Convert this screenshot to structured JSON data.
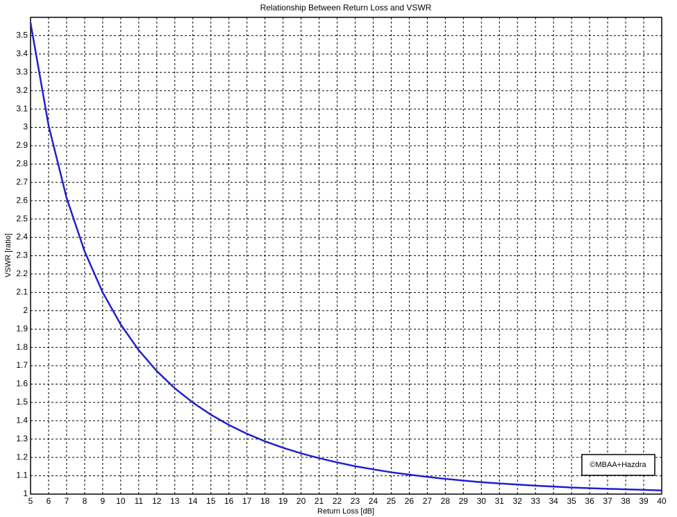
{
  "chart_data": {
    "type": "line",
    "title": "Relationship Between Return Loss and VSWR",
    "x_label": "Return Loss [dB]",
    "y_label": "VSWR [ratio]",
    "annotation": "©MBAA+Hazdra",
    "x": [
      5,
      6,
      7,
      8,
      9,
      10,
      11,
      12,
      13,
      14,
      15,
      16,
      17,
      18,
      19,
      20,
      21,
      22,
      23,
      24,
      25,
      26,
      27,
      28,
      29,
      30,
      31,
      32,
      33,
      34,
      35,
      36,
      37,
      38,
      39,
      40
    ],
    "series": [
      {
        "name": "VSWR",
        "color": "#1f1fd0",
        "values": [
          3.57,
          3.01,
          2.615,
          2.323,
          2.1,
          1.925,
          1.785,
          1.671,
          1.577,
          1.499,
          1.433,
          1.377,
          1.329,
          1.288,
          1.253,
          1.222,
          1.196,
          1.173,
          1.152,
          1.135,
          1.119,
          1.106,
          1.094,
          1.083,
          1.074,
          1.065,
          1.058,
          1.052,
          1.046,
          1.041,
          1.036,
          1.032,
          1.029,
          1.026,
          1.023,
          1.02
        ]
      }
    ],
    "xlim": [
      5,
      40
    ],
    "xticks": [
      5,
      6,
      7,
      8,
      9,
      10,
      11,
      12,
      13,
      14,
      15,
      16,
      17,
      18,
      19,
      20,
      21,
      22,
      23,
      24,
      25,
      26,
      27,
      28,
      29,
      30,
      31,
      32,
      33,
      34,
      35,
      36,
      37,
      38,
      39,
      40
    ],
    "ylim": [
      1,
      3.6
    ],
    "yticks": [
      1,
      1.1,
      1.2,
      1.3,
      1.4,
      1.5,
      1.6,
      1.7,
      1.8,
      1.9,
      2,
      2.1,
      2.2,
      2.3,
      2.4,
      2.5,
      2.6,
      2.7,
      2.8,
      2.9,
      3,
      3.1,
      3.2,
      3.3,
      3.4,
      3.5
    ],
    "grid": true
  }
}
